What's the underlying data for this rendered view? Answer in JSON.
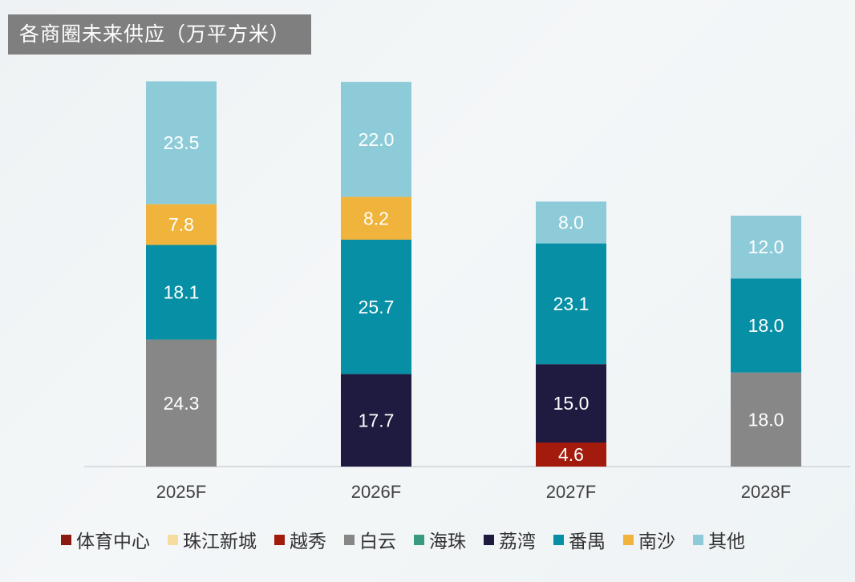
{
  "chart_data": {
    "type": "bar",
    "stacked": true,
    "title": "各商圈未来供应（万平方米）",
    "categories": [
      "2025F",
      "2026F",
      "2027F",
      "2028F"
    ],
    "ylim": [
      0,
      80
    ],
    "series": [
      {
        "name": "体育中心",
        "color": "#8b1a10",
        "values": [
          0,
          0,
          0,
          0
        ]
      },
      {
        "name": "珠江新城",
        "color": "#f7dca0",
        "values": [
          0,
          0,
          0,
          0
        ]
      },
      {
        "name": "越秀",
        "color": "#a21b0c",
        "values": [
          0,
          0,
          4.6,
          0
        ]
      },
      {
        "name": "白云",
        "color": "#878787",
        "values": [
          24.3,
          0,
          0,
          18.0
        ]
      },
      {
        "name": "海珠",
        "color": "#3a9a80",
        "values": [
          0,
          0,
          0,
          0
        ]
      },
      {
        "name": "荔湾",
        "color": "#1e1a40",
        "values": [
          0,
          17.7,
          15.0,
          0
        ]
      },
      {
        "name": "番禺",
        "color": "#068fa5",
        "values": [
          18.1,
          25.7,
          23.1,
          18.0
        ]
      },
      {
        "name": "南沙",
        "color": "#f0b33b",
        "values": [
          7.8,
          8.2,
          0,
          0
        ]
      },
      {
        "name": "其他",
        "color": "#8dcbd9",
        "values": [
          23.5,
          22.0,
          8.0,
          12.0
        ]
      }
    ],
    "data_labels": [
      [
        "24.3",
        "18.1",
        "7.8",
        "23.5"
      ],
      [
        "17.7",
        "25.7",
        "8.2",
        "22.0"
      ],
      [
        "4.6",
        "15.0",
        "23.1",
        "8.0"
      ],
      [
        "18.0",
        "18.0",
        "12.0"
      ]
    ],
    "xlabel": "",
    "ylabel": "",
    "legend_position": "bottom"
  }
}
